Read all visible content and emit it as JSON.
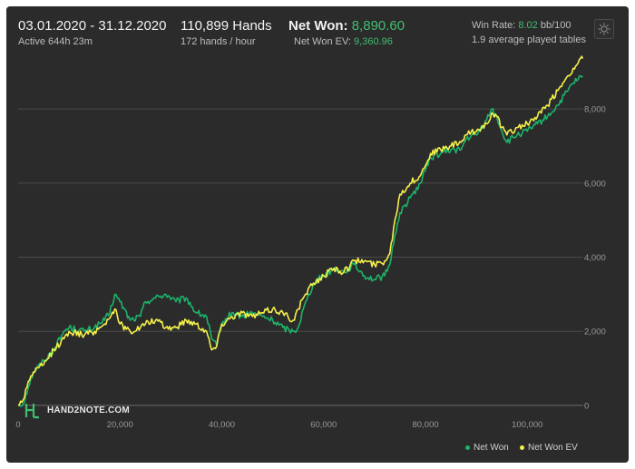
{
  "header": {
    "date_range": "03.01.2020 - 31.12.2020",
    "active": "Active 644h 23m",
    "hands": "110,899 Hands",
    "hands_per_hour": "172 hands / hour",
    "net_won_label": "Net Won:",
    "net_won_value": "8,890.60",
    "net_won_ev_label": "Net Won  EV:",
    "net_won_ev_value": "9,360.96",
    "win_rate_label": "Win Rate:",
    "win_rate_value": "8.02",
    "win_rate_unit": "bb/100",
    "tables": "1.9 average played tables"
  },
  "logo_text": "HAND2NOTE.COM",
  "colors": {
    "net_won": "#1db36a",
    "net_won_ev": "#f4f04a",
    "accent_green": "#3fbf6f",
    "grid": "#4a4a4a"
  },
  "chart_data": {
    "type": "line",
    "xlim": [
      0,
      111000
    ],
    "ylim": [
      -100,
      9400
    ],
    "x_ticks": [
      0,
      20000,
      40000,
      60000,
      80000,
      100000
    ],
    "x_tick_labels": [
      "0",
      "20,000",
      "40,000",
      "60,000",
      "80,000",
      "100,000"
    ],
    "y_ticks": [
      0,
      2000,
      4000,
      6000,
      8000
    ],
    "y_tick_labels": [
      "0",
      "2,000",
      "4,000",
      "6,000",
      "8,000"
    ],
    "grid": true,
    "legend_position": "bottom-right",
    "series": [
      {
        "name": "Net Won",
        "points": [
          [
            0,
            0
          ],
          [
            1000,
            50
          ],
          [
            2000,
            500
          ],
          [
            3000,
            900
          ],
          [
            5000,
            1200
          ],
          [
            7000,
            1500
          ],
          [
            9000,
            2000
          ],
          [
            10000,
            2100
          ],
          [
            13000,
            2000
          ],
          [
            15000,
            2100
          ],
          [
            17000,
            2300
          ],
          [
            18000,
            2500
          ],
          [
            19000,
            3000
          ],
          [
            20000,
            2800
          ],
          [
            22000,
            2300
          ],
          [
            24000,
            2400
          ],
          [
            25000,
            2800
          ],
          [
            27000,
            2900
          ],
          [
            29000,
            3000
          ],
          [
            31000,
            2800
          ],
          [
            33000,
            2900
          ],
          [
            35000,
            2500
          ],
          [
            37000,
            2400
          ],
          [
            38000,
            1800
          ],
          [
            39000,
            1600
          ],
          [
            40000,
            2200
          ],
          [
            42000,
            2500
          ],
          [
            44000,
            2400
          ],
          [
            46000,
            2500
          ],
          [
            48000,
            2400
          ],
          [
            50000,
            2300
          ],
          [
            52000,
            2100
          ],
          [
            54000,
            2000
          ],
          [
            55000,
            2100
          ],
          [
            56000,
            2600
          ],
          [
            58000,
            3300
          ],
          [
            60000,
            3500
          ],
          [
            62000,
            3700
          ],
          [
            64000,
            3600
          ],
          [
            66000,
            3800
          ],
          [
            68000,
            3500
          ],
          [
            70000,
            3400
          ],
          [
            72000,
            3500
          ],
          [
            73000,
            3800
          ],
          [
            74000,
            4600
          ],
          [
            75000,
            5200
          ],
          [
            77000,
            5600
          ],
          [
            79000,
            6000
          ],
          [
            81000,
            6700
          ],
          [
            83000,
            6800
          ],
          [
            85000,
            6900
          ],
          [
            87000,
            6900
          ],
          [
            88000,
            7200
          ],
          [
            90000,
            7300
          ],
          [
            92000,
            7700
          ],
          [
            93000,
            8000
          ],
          [
            94000,
            7800
          ],
          [
            95000,
            7400
          ],
          [
            96000,
            7100
          ],
          [
            98000,
            7300
          ],
          [
            100000,
            7400
          ],
          [
            102000,
            7600
          ],
          [
            104000,
            7800
          ],
          [
            106000,
            8100
          ],
          [
            108000,
            8500
          ],
          [
            109000,
            8700
          ],
          [
            110000,
            8800
          ],
          [
            110899,
            8890.6
          ]
        ]
      },
      {
        "name": "Net Won  EV",
        "points": [
          [
            0,
            0
          ],
          [
            1000,
            150
          ],
          [
            2000,
            650
          ],
          [
            3000,
            900
          ],
          [
            5000,
            1100
          ],
          [
            7000,
            1500
          ],
          [
            9000,
            1800
          ],
          [
            10000,
            2000
          ],
          [
            13000,
            1900
          ],
          [
            15000,
            2000
          ],
          [
            17000,
            2200
          ],
          [
            19000,
            2600
          ],
          [
            20000,
            2200
          ],
          [
            22000,
            2000
          ],
          [
            24000,
            2100
          ],
          [
            25000,
            2200
          ],
          [
            27000,
            2300
          ],
          [
            29000,
            2100
          ],
          [
            31000,
            2100
          ],
          [
            33000,
            2300
          ],
          [
            35000,
            2200
          ],
          [
            37000,
            2000
          ],
          [
            38000,
            1500
          ],
          [
            39000,
            1600
          ],
          [
            40000,
            2200
          ],
          [
            42000,
            2400
          ],
          [
            44000,
            2500
          ],
          [
            46000,
            2400
          ],
          [
            48000,
            2500
          ],
          [
            50000,
            2600
          ],
          [
            52000,
            2500
          ],
          [
            54000,
            2300
          ],
          [
            55000,
            2600
          ],
          [
            56000,
            2900
          ],
          [
            58000,
            3300
          ],
          [
            60000,
            3500
          ],
          [
            62000,
            3700
          ],
          [
            64000,
            3600
          ],
          [
            66000,
            3900
          ],
          [
            68000,
            3900
          ],
          [
            70000,
            3800
          ],
          [
            72000,
            3900
          ],
          [
            73000,
            4100
          ],
          [
            74000,
            5000
          ],
          [
            75000,
            5700
          ],
          [
            77000,
            6000
          ],
          [
            79000,
            6200
          ],
          [
            81000,
            6800
          ],
          [
            83000,
            6900
          ],
          [
            85000,
            7000
          ],
          [
            87000,
            7100
          ],
          [
            88000,
            7300
          ],
          [
            90000,
            7400
          ],
          [
            92000,
            7600
          ],
          [
            93000,
            7900
          ],
          [
            94000,
            7800
          ],
          [
            95000,
            7500
          ],
          [
            96000,
            7300
          ],
          [
            98000,
            7500
          ],
          [
            100000,
            7600
          ],
          [
            102000,
            7800
          ],
          [
            104000,
            8100
          ],
          [
            106000,
            8500
          ],
          [
            108000,
            8900
          ],
          [
            109000,
            9100
          ],
          [
            110000,
            9250
          ],
          [
            110899,
            9360.96
          ]
        ]
      }
    ]
  }
}
